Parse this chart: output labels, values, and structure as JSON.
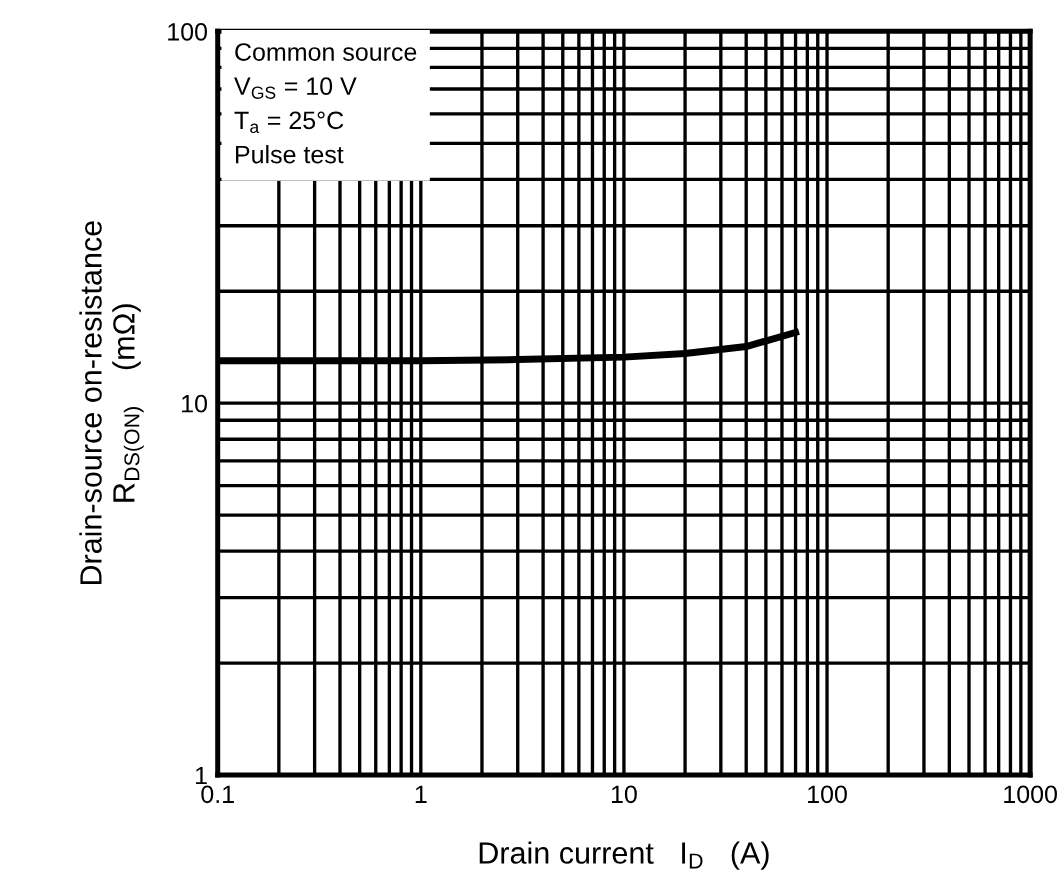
{
  "chart_data": {
    "type": "line",
    "xlabel": "Drain current   I$_{D}$   (A)",
    "ylabel": "Drain-source on-resistance\nR$_{DS(ON)}$    (mΩ)",
    "annotations": [
      "Common source",
      "V$_{GS}$ = 10 V",
      "T$_{a}$ = 25°C",
      "Pulse test"
    ],
    "log": "xy",
    "grid": true,
    "xlim": [
      0.1,
      1000
    ],
    "xticks": [
      0.1,
      1,
      10,
      100,
      1000
    ],
    "ylim": [
      1,
      100
    ],
    "yticks": [
      1,
      10,
      100
    ],
    "series": [
      {
        "color": "#000000",
        "x": [
          0.1,
          1,
          3,
          10,
          20,
          40,
          70
        ],
        "values": [
          13,
          13,
          13.1,
          13.3,
          13.6,
          14.2,
          15.5
        ]
      }
    ]
  }
}
